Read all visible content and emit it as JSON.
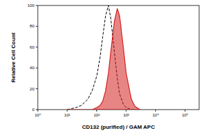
{
  "chart_data": {
    "type": "line",
    "log": "x",
    "x_label": "CD132 (purified) / GAM APC",
    "y_label": "Relative Cell Count",
    "x": [
      10,
      20,
      30,
      50,
      70,
      100,
      130,
      160,
      200,
      250,
      300,
      400,
      500,
      600,
      800,
      1000,
      1500,
      2000,
      3000
    ],
    "series": [
      {
        "type": "line",
        "line_style": "dashed",
        "color": "#000000",
        "values": [
          0,
          2,
          4,
          10,
          18,
          32,
          50,
          70,
          90,
          100,
          88,
          55,
          30,
          15,
          5,
          2,
          0,
          0,
          0
        ]
      },
      {
        "type": "area",
        "line_style": "solid",
        "color": "#d42020",
        "values": [
          0,
          0,
          0,
          0,
          0,
          2,
          4,
          8,
          18,
          35,
          55,
          85,
          97,
          90,
          60,
          35,
          10,
          3,
          0
        ]
      }
    ],
    "xlim": [
      1,
      300000
    ],
    "xticks": [
      {
        "value": 1,
        "label": "10⁰"
      },
      {
        "value": 10,
        "label": "10¹"
      },
      {
        "value": 100,
        "label": "10²"
      },
      {
        "value": 1000,
        "label": "10³"
      },
      {
        "value": 10000,
        "label": "10⁴"
      },
      {
        "value": 100000,
        "label": "10⁵"
      }
    ],
    "ylim": [
      0,
      100
    ],
    "yticks": [
      0,
      20,
      40,
      60,
      80,
      100
    ],
    "grid": false
  }
}
